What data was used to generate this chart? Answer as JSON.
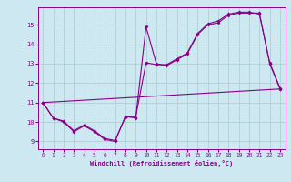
{
  "xlabel": "Windchill (Refroidissement éolien,°C)",
  "background_color": "#cde8f0",
  "plot_bg_color": "#cde8f0",
  "grid_color": "#a8cccc",
  "line_color": "#880088",
  "xlim": [
    -0.5,
    23.5
  ],
  "ylim": [
    8.6,
    15.9
  ],
  "yticks": [
    9,
    10,
    11,
    12,
    13,
    14,
    15
  ],
  "xticks": [
    0,
    1,
    2,
    3,
    4,
    5,
    6,
    7,
    8,
    9,
    10,
    11,
    12,
    13,
    14,
    15,
    16,
    17,
    18,
    19,
    20,
    21,
    22,
    23
  ],
  "line1_x": [
    0,
    1,
    2,
    3,
    4,
    5,
    6,
    7,
    8,
    9,
    10,
    11,
    12,
    13,
    14,
    15,
    16,
    17,
    18,
    19,
    20,
    21,
    22,
    23
  ],
  "line1_y": [
    11.0,
    10.2,
    10.0,
    9.5,
    9.8,
    9.5,
    9.1,
    9.0,
    10.3,
    10.2,
    14.9,
    13.0,
    12.9,
    13.2,
    13.5,
    14.5,
    15.0,
    15.1,
    15.5,
    15.6,
    15.6,
    15.6,
    13.0,
    11.7
  ],
  "line2_x": [
    0,
    1,
    2,
    3,
    4,
    5,
    6,
    7,
    8,
    9,
    10,
    11,
    12,
    13,
    14,
    15,
    16,
    17,
    18,
    19,
    20,
    21,
    22,
    23
  ],
  "line2_y": [
    11.0,
    10.2,
    10.05,
    9.55,
    9.85,
    9.55,
    9.15,
    9.05,
    10.25,
    10.25,
    13.05,
    12.95,
    12.95,
    13.25,
    13.55,
    14.55,
    15.05,
    15.2,
    15.55,
    15.65,
    15.65,
    15.55,
    13.05,
    11.75
  ],
  "line3_x": [
    0,
    23
  ],
  "line3_y": [
    11.0,
    11.7
  ]
}
